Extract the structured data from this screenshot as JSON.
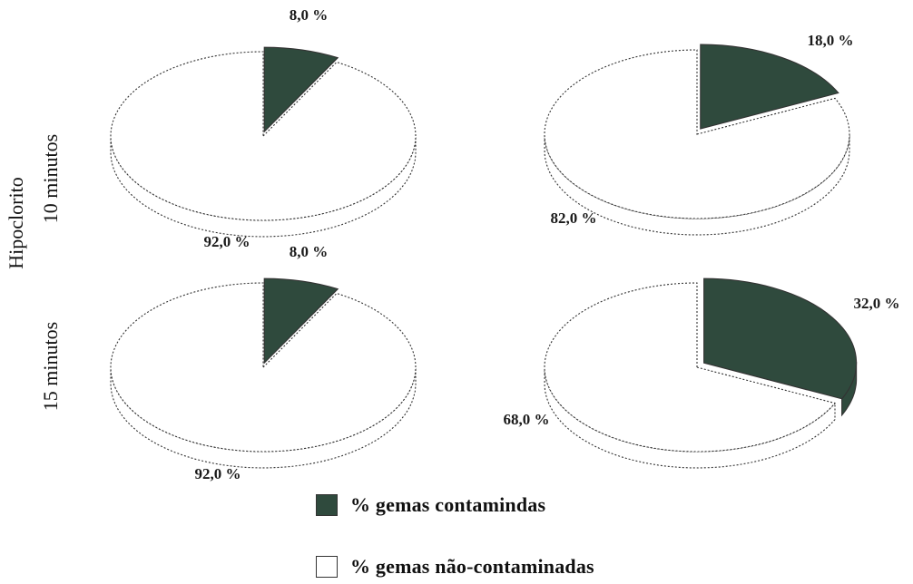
{
  "side_labels": {
    "hipoclorito": "Hipoclorito",
    "ten_minutes": "10  minutos",
    "fifteen_minutes": "15  minutos"
  },
  "colors": {
    "contaminated": "#2f4a3d",
    "non_contaminated": "#ffffff",
    "outline": "#333333"
  },
  "legend": [
    {
      "label": "% gemas  contamindas",
      "color": "#2f4a3d"
    },
    {
      "label": "%  gemas não-contaminadas",
      "color": "#ffffff"
    }
  ],
  "chart_data": [
    {
      "type": "pie",
      "row": "10 minutos",
      "column": 1,
      "categories": [
        "% gemas  contamindas",
        "%  gemas não-contaminadas"
      ],
      "values": [
        8.0,
        92.0
      ],
      "labels": [
        "8,0 %",
        "92,0 %"
      ]
    },
    {
      "type": "pie",
      "row": "10 minutos",
      "column": 2,
      "categories": [
        "% gemas  contamindas",
        "%  gemas não-contaminadas"
      ],
      "values": [
        18.0,
        82.0
      ],
      "labels": [
        "18,0 %",
        "82,0 %"
      ]
    },
    {
      "type": "pie",
      "row": "15 minutos",
      "column": 1,
      "categories": [
        "% gemas  contamindas",
        "%  gemas não-contaminadas"
      ],
      "values": [
        8.0,
        92.0
      ],
      "labels": [
        "8,0 %",
        "92,0 %"
      ]
    },
    {
      "type": "pie",
      "row": "15 minutos",
      "column": 2,
      "categories": [
        "% gemas  contamindas",
        "%  gemas não-contaminadas"
      ],
      "values": [
        32.0,
        68.0
      ],
      "labels": [
        "32,0 %",
        "68,0 %"
      ]
    }
  ]
}
